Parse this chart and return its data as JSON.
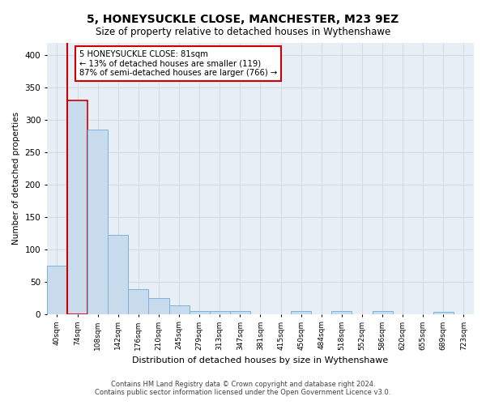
{
  "title": "5, HONEYSUCKLE CLOSE, MANCHESTER, M23 9EZ",
  "subtitle": "Size of property relative to detached houses in Wythenshawe",
  "xlabel": "Distribution of detached houses by size in Wythenshawe",
  "ylabel": "Number of detached properties",
  "bin_labels": [
    "40sqm",
    "74sqm",
    "108sqm",
    "142sqm",
    "176sqm",
    "210sqm",
    "245sqm",
    "279sqm",
    "313sqm",
    "347sqm",
    "381sqm",
    "415sqm",
    "450sqm",
    "484sqm",
    "518sqm",
    "552sqm",
    "586sqm",
    "620sqm",
    "655sqm",
    "689sqm",
    "723sqm"
  ],
  "bar_heights": [
    75,
    330,
    285,
    122,
    38,
    25,
    13,
    5,
    5,
    5,
    0,
    0,
    5,
    0,
    4,
    0,
    4,
    0,
    0,
    3,
    0
  ],
  "bar_color": "#c9dcee",
  "bar_edge_color": "#7ab4d8",
  "highlight_edge_color": "#cc0000",
  "vline_color": "#cc0000",
  "annotation_box_text": "5 HONEYSUCKLE CLOSE: 81sqm\n← 13% of detached houses are smaller (119)\n87% of semi-detached houses are larger (766) →",
  "ylim": [
    0,
    420
  ],
  "yticks": [
    0,
    50,
    100,
    150,
    200,
    250,
    300,
    350,
    400
  ],
  "grid_color": "#d0dce8",
  "background_color": "#e8eef6",
  "footer_line1": "Contains HM Land Registry data © Crown copyright and database right 2024.",
  "footer_line2": "Contains public sector information licensed under the Open Government Licence v3.0."
}
